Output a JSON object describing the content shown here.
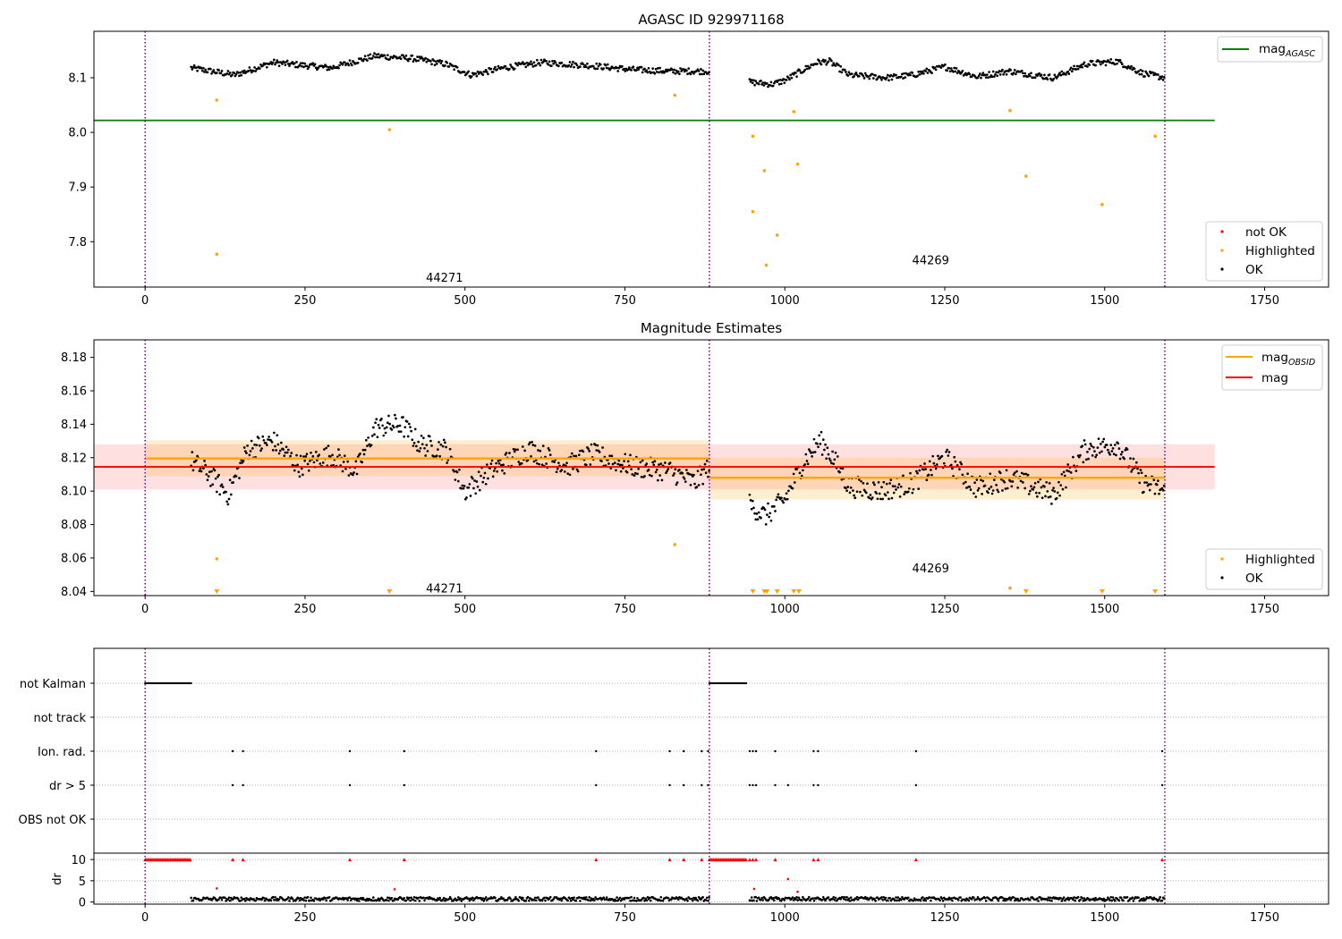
{
  "chart_data": [
    {
      "type": "scatter",
      "title": "AGASC ID 929971168",
      "xlim": [
        -80,
        1850
      ],
      "ylim": [
        7.717,
        8.185
      ],
      "xticks": [
        0,
        250,
        500,
        750,
        1000,
        1250,
        1500,
        1750
      ],
      "yticks": [
        7.8,
        7.9,
        8.0,
        8.1
      ],
      "ytick_labels": [
        "7.8",
        "7.9",
        "8.0",
        "8.1"
      ],
      "obs_boundaries": [
        0,
        882,
        1594
      ],
      "obsids": [
        {
          "label": "44271",
          "x": 440,
          "y": 7.735
        },
        {
          "label": "44269",
          "x": 1200,
          "y": 7.767
        }
      ],
      "reference_lines": [
        {
          "name": "mag$_{AGASC}$",
          "label_main": "mag",
          "label_sub": "AGASC",
          "value": 8.022,
          "x_range": [
            -80,
            1672
          ],
          "color": "#008000"
        }
      ],
      "ok_segments": [
        {
          "x_range": [
            72,
            882
          ],
          "knots": [
            [
              72,
              8.118
            ],
            [
              140,
              8.105
            ],
            [
              200,
              8.128
            ],
            [
              290,
              8.118
            ],
            [
              360,
              8.14
            ],
            [
              420,
              8.135
            ],
            [
              470,
              8.125
            ],
            [
              510,
              8.105
            ],
            [
              560,
              8.118
            ],
            [
              620,
              8.128
            ],
            [
              700,
              8.122
            ],
            [
              760,
              8.115
            ],
            [
              820,
              8.112
            ],
            [
              882,
              8.112
            ]
          ]
        },
        {
          "x_range": [
            945,
            1594
          ],
          "knots": [
            [
              945,
              8.092
            ],
            [
              980,
              8.088
            ],
            [
              1000,
              8.095
            ],
            [
              1030,
              8.115
            ],
            [
              1050,
              8.128
            ],
            [
              1070,
              8.13
            ],
            [
              1100,
              8.105
            ],
            [
              1160,
              8.1
            ],
            [
              1200,
              8.105
            ],
            [
              1250,
              8.12
            ],
            [
              1300,
              8.102
            ],
            [
              1350,
              8.112
            ],
            [
              1420,
              8.1
            ],
            [
              1470,
              8.125
            ],
            [
              1520,
              8.13
            ],
            [
              1560,
              8.108
            ],
            [
              1594,
              8.1
            ]
          ]
        }
      ],
      "highlighted": [
        [
          112,
          8.059
        ],
        [
          112,
          7.777
        ],
        [
          382,
          8.005
        ],
        [
          828,
          8.068
        ],
        [
          950,
          7.993
        ],
        [
          950,
          7.855
        ],
        [
          968,
          7.93
        ],
        [
          971,
          7.757
        ],
        [
          988,
          7.812
        ],
        [
          1014,
          8.038
        ],
        [
          1020,
          7.942
        ],
        [
          1352,
          8.04
        ],
        [
          1377,
          7.92
        ],
        [
          1496,
          7.868
        ],
        [
          1579,
          7.993
        ]
      ],
      "legend": [
        {
          "label": "not OK",
          "color": "#ff0000",
          "marker": "dot"
        },
        {
          "label": "Highlighted",
          "color": "#ffa500",
          "marker": "dot"
        },
        {
          "label": "OK",
          "color": "#000000",
          "marker": "dot"
        }
      ]
    },
    {
      "type": "scatter",
      "title": "Magnitude Estimates",
      "xlim": [
        -80,
        1850
      ],
      "ylim": [
        8.0375,
        8.1905
      ],
      "xticks": [
        0,
        250,
        500,
        750,
        1000,
        1250,
        1500,
        1750
      ],
      "yticks": [
        8.04,
        8.06,
        8.08,
        8.1,
        8.12,
        8.14,
        8.16,
        8.18
      ],
      "ytick_labels": [
        "8.04",
        "8.06",
        "8.08",
        "8.10",
        "8.12",
        "8.14",
        "8.16",
        "8.18"
      ],
      "obs_boundaries": [
        0,
        882,
        1594
      ],
      "obsids": [
        {
          "label": "44271",
          "x": 440,
          "y": 8.042
        },
        {
          "label": "44269",
          "x": 1200,
          "y": 8.054
        }
      ],
      "reference_lines": [
        {
          "name": "mag$_{OBSID}$",
          "label_main": "mag",
          "label_sub": "OBSID",
          "color": "#ffa500",
          "segments": [
            {
              "x_range": [
                0,
                882
              ],
              "value": 8.1195,
              "band": [
                8.109,
                8.1305
              ]
            },
            {
              "x_range": [
                882,
                1594
              ],
              "value": 8.108,
              "band": [
                8.095,
                8.12
              ]
            }
          ]
        },
        {
          "name": "mag",
          "label_main": "mag",
          "label_sub": "",
          "color": "#ff0000",
          "value": 8.1145,
          "band": [
            8.101,
            8.128
          ],
          "x_range": [
            -80,
            1672
          ]
        }
      ],
      "ok_segments": [
        {
          "x_range": [
            72,
            882
          ],
          "knots": [
            [
              72,
              8.118
            ],
            [
              100,
              8.11
            ],
            [
              130,
              8.098
            ],
            [
              160,
              8.125
            ],
            [
              200,
              8.13
            ],
            [
              240,
              8.115
            ],
            [
              290,
              8.122
            ],
            [
              330,
              8.112
            ],
            [
              360,
              8.138
            ],
            [
              400,
              8.14
            ],
            [
              430,
              8.128
            ],
            [
              470,
              8.125
            ],
            [
              500,
              8.1
            ],
            [
              540,
              8.112
            ],
            [
              600,
              8.125
            ],
            [
              660,
              8.115
            ],
            [
              700,
              8.122
            ],
            [
              760,
              8.115
            ],
            [
              820,
              8.112
            ],
            [
              860,
              8.105
            ],
            [
              882,
              8.115
            ]
          ]
        },
        {
          "x_range": [
            945,
            1594
          ],
          "knots": [
            [
              945,
              8.092
            ],
            [
              970,
              8.085
            ],
            [
              1000,
              8.095
            ],
            [
              1030,
              8.118
            ],
            [
              1055,
              8.13
            ],
            [
              1075,
              8.12
            ],
            [
              1100,
              8.103
            ],
            [
              1150,
              8.1
            ],
            [
              1200,
              8.105
            ],
            [
              1250,
              8.12
            ],
            [
              1300,
              8.102
            ],
            [
              1350,
              8.108
            ],
            [
              1420,
              8.098
            ],
            [
              1470,
              8.125
            ],
            [
              1520,
              8.128
            ],
            [
              1560,
              8.105
            ],
            [
              1594,
              8.1
            ]
          ]
        }
      ],
      "highlighted": [
        [
          112,
          8.0595
        ],
        [
          828,
          8.068
        ],
        [
          1352,
          8.042
        ]
      ],
      "below_range": [
        112,
        382,
        950,
        968,
        972,
        988,
        1014,
        1022,
        1377,
        1496,
        1579
      ],
      "legend": [
        {
          "label": "Highlighted",
          "color": "#ffa500",
          "marker": "dot"
        },
        {
          "label": "OK",
          "color": "#000000",
          "marker": "dot"
        }
      ]
    },
    {
      "type": "scatter",
      "title": "",
      "xlim": [
        -80,
        1850
      ],
      "xticks": [
        0,
        250,
        500,
        750,
        1000,
        1250,
        1500,
        1750
      ],
      "obs_boundaries": [
        0,
        882,
        1594
      ],
      "flag_rows": [
        "not Kalman",
        "not track",
        "Ion. rad.",
        "dr > 5",
        "OBS not OK"
      ],
      "flags": {
        "not Kalman": {
          "ranges": [
            [
              0,
              72
            ],
            [
              882,
              940
            ]
          ]
        },
        "not track": {
          "points": []
        },
        "Ion. rad.": {
          "points": [
            137,
            153,
            320,
            405,
            705,
            820,
            842,
            870,
            880,
            945,
            950,
            955,
            985,
            1045,
            1052,
            1205,
            1590
          ]
        },
        "dr > 5": {
          "points": [
            137,
            153,
            320,
            405,
            705,
            820,
            842,
            870,
            880,
            945,
            950,
            955,
            985,
            1005,
            1045,
            1052,
            1205,
            1590
          ]
        },
        "OBS not OK": {
          "points": []
        }
      },
      "dr_axis": {
        "ylabel": "dr",
        "ylim": [
          -0.5,
          11.5
        ],
        "yticks": [
          0,
          5,
          10
        ],
        "ytick_labels": [
          "0",
          "5",
          "10"
        ]
      },
      "dr_segments": [
        {
          "x_range": [
            72,
            882
          ],
          "base": 0.7
        },
        {
          "x_range": [
            945,
            1594
          ],
          "base": 0.7
        }
      ],
      "dr_clipped": {
        "value": 10,
        "ranges": [
          [
            0,
            72
          ],
          [
            882,
            940
          ]
        ],
        "points": [
          137,
          153,
          320,
          405,
          705,
          820,
          842,
          870,
          945,
          950,
          955,
          985,
          1045,
          1052,
          1205,
          1590
        ]
      },
      "dr_outliers": [
        [
          112,
          3.2
        ],
        [
          390,
          3.0
        ],
        [
          952,
          3.1
        ],
        [
          1005,
          5.4
        ],
        [
          1020,
          2.4
        ]
      ]
    }
  ]
}
